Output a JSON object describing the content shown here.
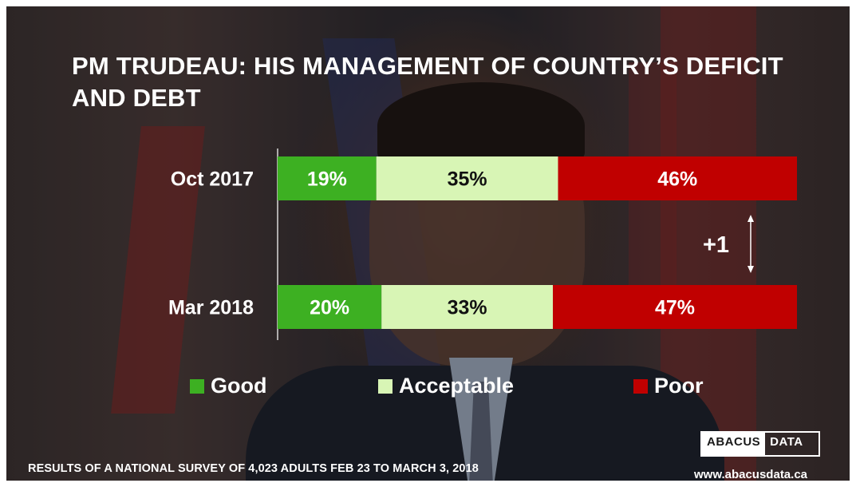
{
  "title": "PM TRUDEAU: HIS MANAGEMENT OF COUNTRY’S DEFICIT AND DEBT",
  "footnote": "RESULTS OF A NATIONAL SURVEY OF 4,023 ADULTS FEB 23 TO MARCH 3, 2018",
  "logo": {
    "part1": "ABACUS",
    "part2": "DATA"
  },
  "website": "www.abacusdata.ca",
  "change_label": "+1",
  "colors": {
    "good": "#3db022",
    "acceptable": "#d8f5b5",
    "poor": "#c00000"
  },
  "chart_data": {
    "type": "bar",
    "orientation": "horizontal-stacked-100",
    "title": "PM TRUDEAU: HIS MANAGEMENT OF COUNTRY’S DEFICIT AND DEBT",
    "categories": [
      "Oct 2017",
      "Mar 2018"
    ],
    "series": [
      {
        "name": "Good",
        "values": [
          19,
          20
        ],
        "labels": [
          "19%",
          "20%"
        ],
        "color": "#3db022",
        "text_color": "#ffffff"
      },
      {
        "name": "Acceptable",
        "values": [
          35,
          33
        ],
        "labels": [
          "35%",
          "33%"
        ],
        "color": "#d8f5b5",
        "text_color": "#111111"
      },
      {
        "name": "Poor",
        "values": [
          46,
          47
        ],
        "labels": [
          "46%",
          "47%"
        ],
        "color": "#c00000",
        "text_color": "#ffffff"
      }
    ],
    "xlim": [
      0,
      100
    ],
    "legend": "bottom",
    "grid": false
  }
}
